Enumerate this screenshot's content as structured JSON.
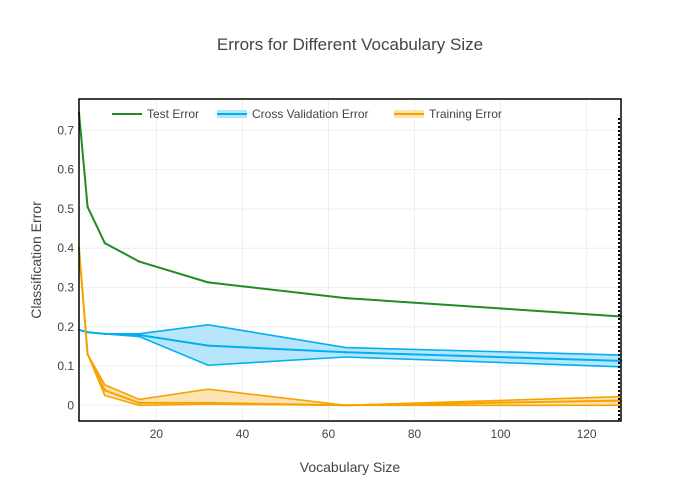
{
  "chart_data": {
    "type": "line",
    "title": "Errors for Different Vocabulary Size",
    "xlabel": "Vocabulary Size",
    "ylabel": "Classification Error",
    "xlim": [
      2,
      128
    ],
    "ylim": [
      -0.04,
      0.78
    ],
    "grid": true,
    "legend_position": "top-left",
    "x_ticks": [
      20,
      40,
      60,
      80,
      100,
      120
    ],
    "x_tick_labels": [
      "20",
      "40",
      "60",
      "80",
      "100",
      "120"
    ],
    "y_ticks": [
      0,
      0.1,
      0.2,
      0.3,
      0.4,
      0.5,
      0.6,
      0.7
    ],
    "y_tick_labels": [
      "0",
      "0.1",
      "0.2",
      "0.3",
      "0.4",
      "0.5",
      "0.6",
      "0.7"
    ],
    "x": [
      2,
      4,
      8,
      16,
      32,
      64,
      128
    ],
    "series": [
      {
        "name": "Test Error",
        "color": "#228b22",
        "values": [
          0.745,
          0.505,
          0.413,
          0.366,
          0.313,
          0.273,
          0.226
        ]
      },
      {
        "name": "Cross Validation Error",
        "color": "#00b0f0",
        "band_color": "#b3e5fc",
        "values": [
          0.192,
          0.186,
          0.182,
          0.179,
          0.152,
          0.135,
          0.113
        ],
        "upper": [
          0.192,
          0.186,
          0.182,
          0.182,
          0.205,
          0.147,
          0.128
        ],
        "lower": [
          0.192,
          0.186,
          0.182,
          0.175,
          0.102,
          0.123,
          0.098
        ]
      },
      {
        "name": "Training Error",
        "color": "#f5a300",
        "band_color": "#fde2b0",
        "values": [
          0.4,
          0.13,
          0.038,
          0.006,
          0.006,
          0.0,
          0.012
        ],
        "upper": [
          0.4,
          0.13,
          0.052,
          0.015,
          0.041,
          0.0,
          0.022
        ],
        "lower": [
          0.4,
          0.13,
          0.025,
          0.0,
          0.003,
          0.0,
          0.0
        ]
      }
    ]
  }
}
